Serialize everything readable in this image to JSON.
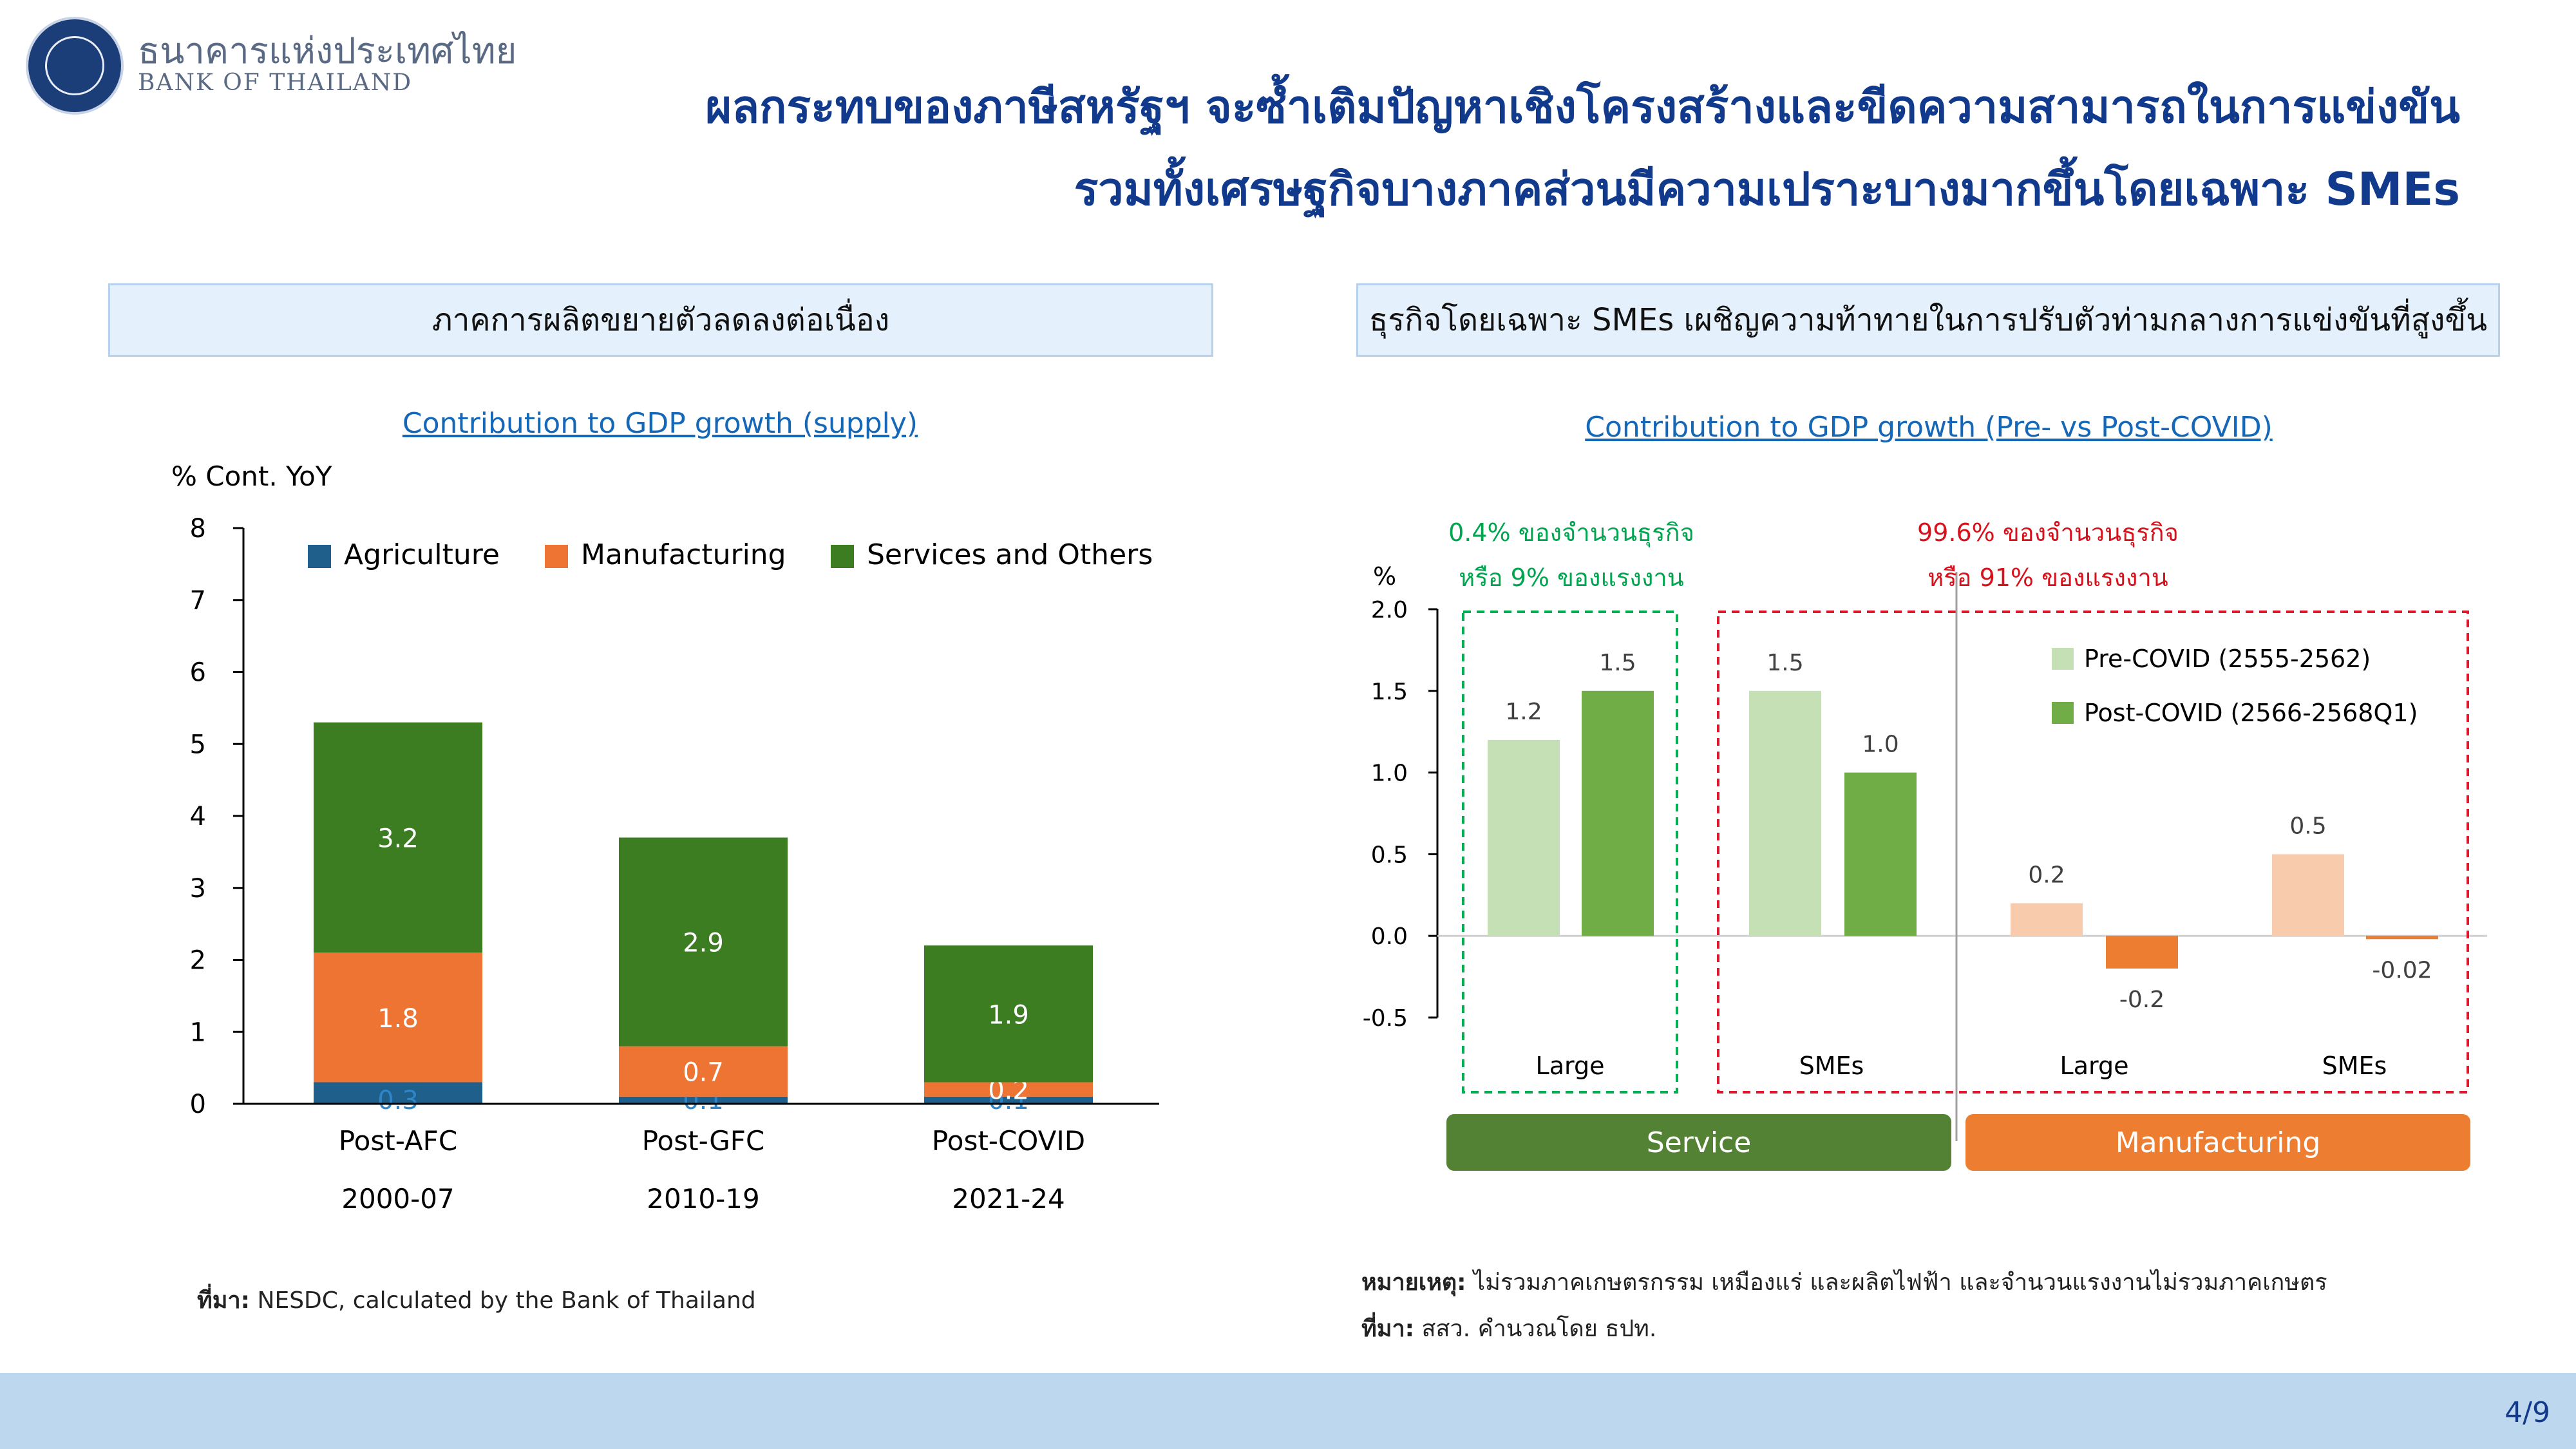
{
  "header": {
    "logo_th": "ธนาคารแห่งประเทศไทย",
    "logo_en": "BANK OF THAILAND",
    "title_line1": "ผลกระทบของภาษีสหรัฐฯ จะซ้ำเติมปัญหาเชิงโครงสร้างและขีดความสามารถในการแข่งขัน",
    "title_line2": "รวมทั้งเศรษฐกิจบางภาคส่วนมีความเปราะบางมากขึ้นโดยเฉพาะ SMEs"
  },
  "left_panel": {
    "heading": "ภาคการผลิตขยายตัวลดลงต่อเนื่อง",
    "chart_title": "Contribution to GDP growth (supply)",
    "source_label": "ที่มา:",
    "source_text": " NESDC, calculated by the Bank of Thailand"
  },
  "right_panel": {
    "heading": "ธุรกิจโดยเฉพาะ SMEs เผชิญความท้าทายในการปรับตัวท่ามกลางการแข่งขันที่สูงขึ้น",
    "chart_title": "Contribution to GDP growth (Pre- vs Post-COVID)",
    "large_note_line1": "0.4% ของจำนวนธุรกิจ",
    "large_note_line2": "หรือ 9% ของแรงงาน",
    "sme_note_line1": "99.6% ของจำนวนธุรกิจ",
    "sme_note_line2": "หรือ 91% ของแรงงาน",
    "service_label": "Service",
    "manufacturing_label": "Manufacturing",
    "note_label": "หมายเหตุ:",
    "note_text": " ไม่รวมภาคเกษตรกรรม เหมืองแร่ และผลิตไฟฟ้า และจำนวนแรงงานไม่รวมภาคเกษตร",
    "source_label": "ที่มา:",
    "source_text": " สสว. คำนวณโดย ธปท."
  },
  "page_number": "4/9",
  "colors": {
    "agriculture": "#1f5f8b",
    "manufacturing": "#ed7433",
    "services": "#3c7d22",
    "pre_service": "#c5e0b4",
    "post_service": "#70ad47",
    "pre_manu": "#f8cbad",
    "post_manu": "#ed7d31",
    "service_btn": "#548235",
    "manu_btn": "#ed7d31",
    "title": "#123a8c"
  },
  "chart_data": [
    {
      "type": "bar",
      "stacked": true,
      "title": "Contribution to GDP growth (supply)",
      "ylabel": "% Cont. YoY",
      "ylim": [
        0,
        8
      ],
      "yticks": [
        "0",
        "1",
        "2",
        "3",
        "4",
        "5",
        "6",
        "7",
        "8"
      ],
      "categories": [
        "Post-AFC",
        "Post-GFC",
        "Post-COVID"
      ],
      "category_sub": [
        "2000-07",
        "2010-19",
        "2021-24"
      ],
      "legend_position": "top",
      "series": [
        {
          "name": "Agriculture",
          "values": [
            0.3,
            0.1,
            0.1
          ],
          "labels": [
            "0.3",
            "0.1",
            "0.1"
          ]
        },
        {
          "name": "Manufacturing",
          "values": [
            1.8,
            0.7,
            0.2
          ],
          "labels": [
            "1.8",
            "0.7",
            "0.2"
          ]
        },
        {
          "name": "Services and Others",
          "values": [
            3.2,
            2.9,
            1.9
          ],
          "labels": [
            "3.2",
            "2.9",
            "1.9"
          ]
        }
      ]
    },
    {
      "type": "bar",
      "title": "Contribution to GDP growth (Pre- vs Post-COVID)",
      "ylabel": "%",
      "ylim": [
        -0.5,
        2.0
      ],
      "yticks": [
        "-0.5",
        "0.0",
        "0.5",
        "1.0",
        "1.5",
        "2.0"
      ],
      "categories": [
        "Large",
        "SMEs",
        "Large",
        "SMEs"
      ],
      "groups": [
        "Service",
        "Service",
        "Manufacturing",
        "Manufacturing"
      ],
      "legend_position": "top-right",
      "series": [
        {
          "name": "Pre-COVID (2555-2562)",
          "values": [
            1.2,
            1.5,
            0.2,
            0.5
          ],
          "labels": [
            "1.2",
            "1.5",
            "0.2",
            "0.5"
          ]
        },
        {
          "name": "Post-COVID (2566-2568Q1)",
          "values": [
            1.5,
            1.0,
            -0.2,
            -0.02
          ],
          "labels": [
            "1.5",
            "1.0",
            "-0.2",
            "-0.02"
          ]
        }
      ]
    }
  ]
}
